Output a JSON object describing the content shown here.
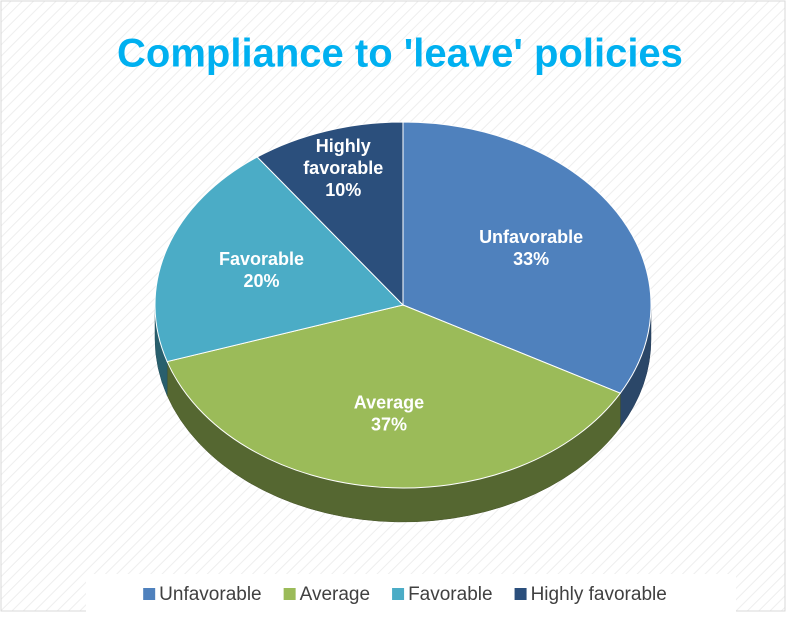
{
  "chart_data": {
    "type": "pie",
    "title": "Compliance to 'leave' policies",
    "categories": [
      "Unfavorable",
      "Average",
      "Favorable",
      "Highly favorable"
    ],
    "values": [
      33,
      37,
      20,
      10
    ],
    "value_labels": [
      "33%",
      "37%",
      "20%",
      "10%"
    ],
    "colors": [
      "#4f81bd",
      "#9bbb59",
      "#4bacc6",
      "#2b4f7c"
    ],
    "legend": "bottom"
  }
}
